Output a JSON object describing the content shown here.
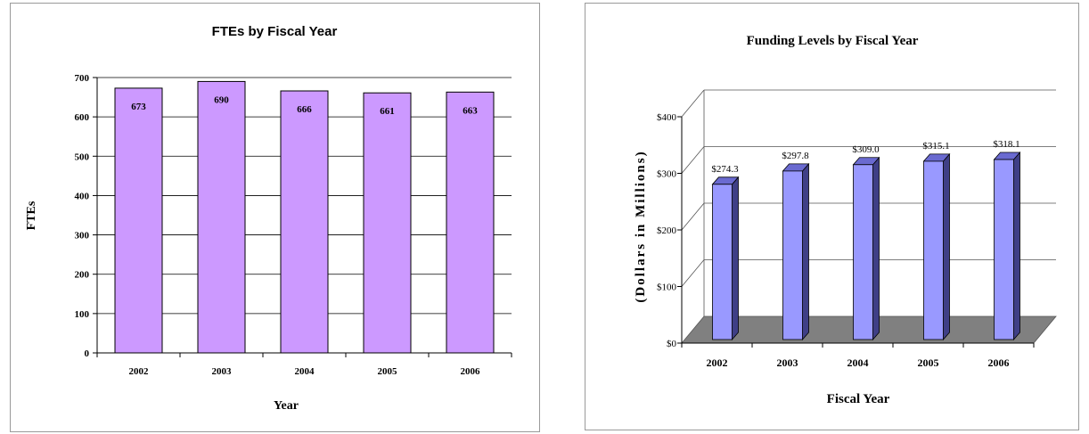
{
  "chart_data": [
    {
      "type": "bar",
      "title": "FTEs by Fiscal Year",
      "xlabel": "Year",
      "ylabel": "FTEs",
      "categories": [
        "2002",
        "2003",
        "2004",
        "2005",
        "2006"
      ],
      "values": [
        673,
        690,
        666,
        661,
        663
      ],
      "data_labels": [
        "673",
        "690",
        "666",
        "661",
        "663"
      ],
      "ylim": [
        0,
        700
      ],
      "yticks": [
        0,
        100,
        200,
        300,
        400,
        500,
        600,
        700
      ],
      "ytick_labels": [
        "0",
        "100",
        "200",
        "300",
        "400",
        "500",
        "600",
        "700"
      ],
      "grid": true,
      "colors": {
        "bar": "#cc99ff",
        "bar_stroke": "#000000"
      }
    },
    {
      "type": "bar",
      "title": "Funding Levels by Fiscal Year",
      "xlabel": "Fiscal Year",
      "ylabel": "(Dollars in Millions)",
      "categories": [
        "2002",
        "2003",
        "2004",
        "2005",
        "2006"
      ],
      "values": [
        274.3,
        297.8,
        309.0,
        315.1,
        318.1
      ],
      "data_labels": [
        "$274.3",
        "$297.8",
        "$309.0",
        "$315.1",
        "$318.1"
      ],
      "ylim": [
        0,
        400
      ],
      "yticks": [
        0,
        100,
        200,
        300,
        400
      ],
      "ytick_labels": [
        "$0",
        "$100",
        "$200",
        "$300",
        "$400"
      ],
      "grid": true,
      "style": "3d-column",
      "colors": {
        "front": "#9999ff",
        "side": "#3f3f86",
        "top": "#6a6ad0",
        "floor": "#808080"
      }
    }
  ]
}
